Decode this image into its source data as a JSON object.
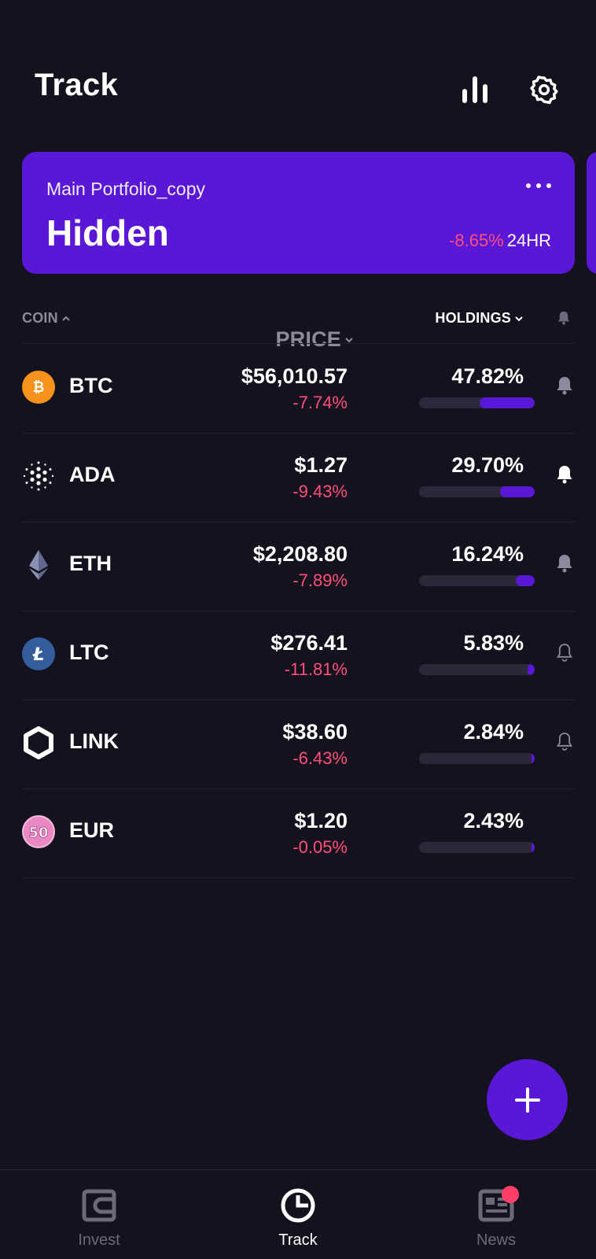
{
  "header": {
    "title": "Track",
    "stats_icon": "bar-chart-icon",
    "settings_icon": "gear-icon"
  },
  "portfolio": {
    "name": "Main Portfolio_copy",
    "value": "Hidden",
    "change": "-8.65%",
    "period": "24HR",
    "more_icon": "more-horizontal-icon"
  },
  "columns": {
    "coin": "COIN",
    "price": "PRICE",
    "holdings": "HOLDINGS",
    "bell_icon": "bell-icon"
  },
  "coins": [
    {
      "symbol": "BTC",
      "price": "$56,010.57",
      "change": "-7.74%",
      "holding": "47.82%",
      "holding_fraction": 0.4782,
      "alert": "filled",
      "icon": "bitcoin-icon",
      "color": "#f7931a"
    },
    {
      "symbol": "ADA",
      "price": "$1.27",
      "change": "-9.43%",
      "holding": "29.70%",
      "holding_fraction": 0.297,
      "alert": "filled-bright",
      "icon": "cardano-icon",
      "color": "#ffffff"
    },
    {
      "symbol": "ETH",
      "price": "$2,208.80",
      "change": "-7.89%",
      "holding": "16.24%",
      "holding_fraction": 0.1624,
      "alert": "filled",
      "icon": "ethereum-icon",
      "color": "#8a92b2"
    },
    {
      "symbol": "LTC",
      "price": "$276.41",
      "change": "-11.81%",
      "holding": "5.83%",
      "holding_fraction": 0.0583,
      "alert": "outline",
      "icon": "litecoin-icon",
      "color": "#345d9d"
    },
    {
      "symbol": "LINK",
      "price": "$38.60",
      "change": "-6.43%",
      "holding": "2.84%",
      "holding_fraction": 0.0284,
      "alert": "outline",
      "icon": "chainlink-icon",
      "color": "#ffffff"
    },
    {
      "symbol": "EUR",
      "price": "$1.20",
      "change": "-0.05%",
      "holding": "2.43%",
      "holding_fraction": 0.0243,
      "alert": "none",
      "icon": "euro-banknote-icon",
      "color": "#e889c4"
    }
  ],
  "fab": {
    "icon": "plus-icon"
  },
  "tabs": [
    {
      "label": "Invest",
      "icon": "wallet-icon",
      "active": false
    },
    {
      "label": "Track",
      "icon": "pie-chart-icon",
      "active": true
    },
    {
      "label": "News",
      "icon": "newspaper-icon",
      "active": false,
      "badge": true
    }
  ],
  "colors": {
    "background": "#14121f",
    "accent": "#5a17d6",
    "negative": "#ff4f7a",
    "muted": "#8d8a9c"
  }
}
